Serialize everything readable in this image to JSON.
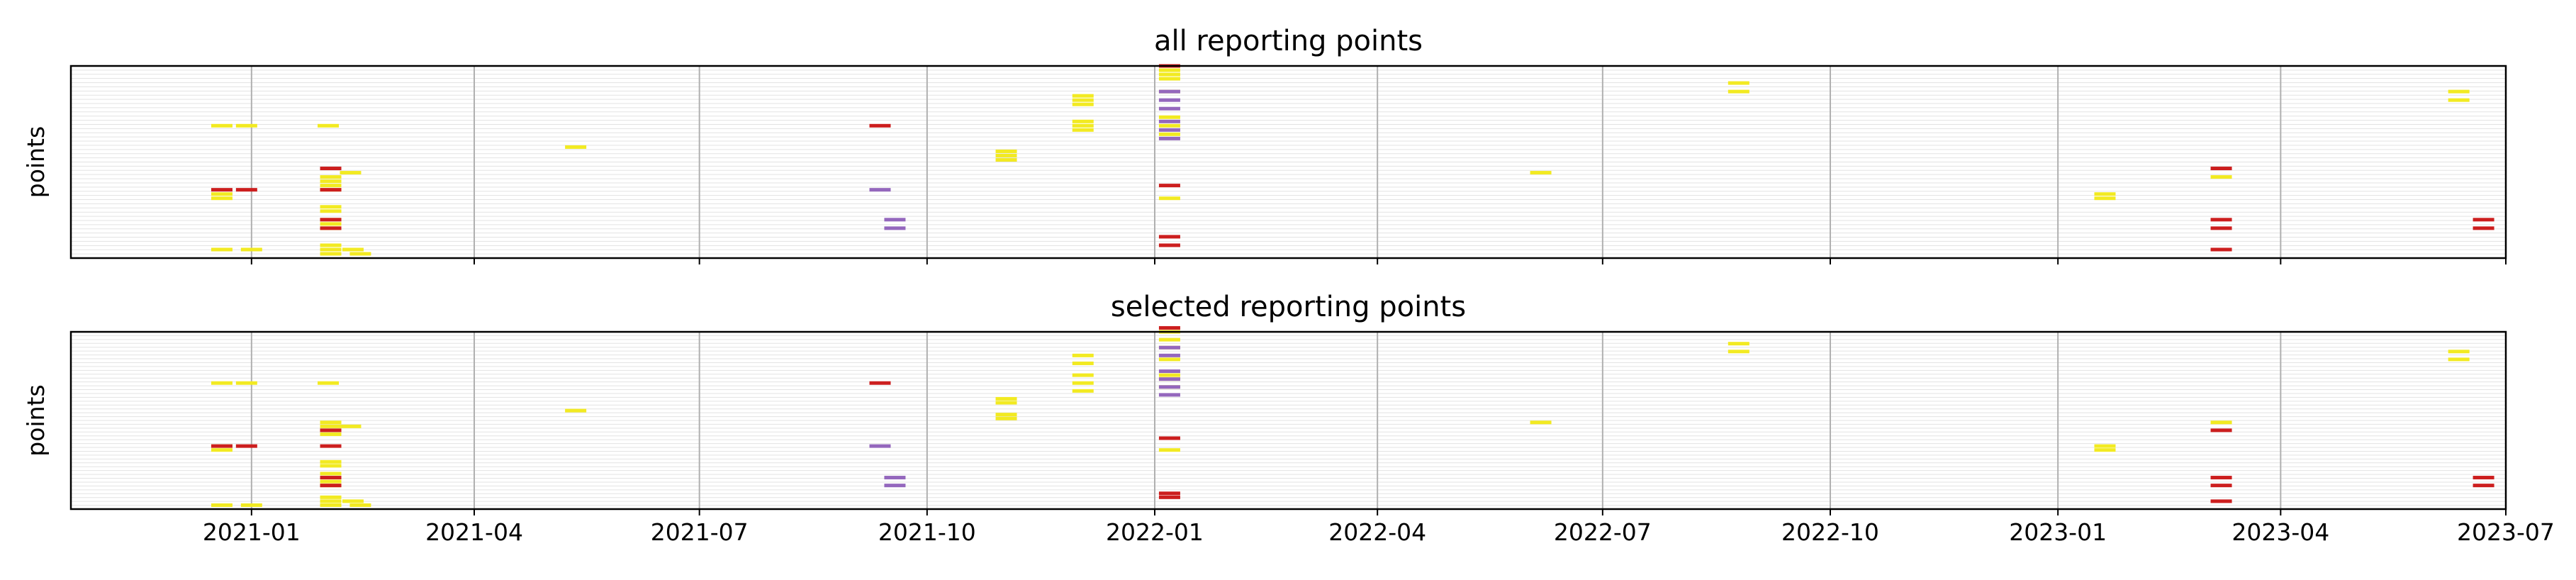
{
  "colors": {
    "background": "#ffffff",
    "frame": "#000000",
    "vgrid": "#b0b0b0",
    "hgrid": "#e3e3e3",
    "yellow": "#f2ea22",
    "red": "#cc1e1e",
    "purple": "#9467bd"
  },
  "chart_data": [
    {
      "type": "scatter",
      "title": "all reporting points",
      "xlabel": "",
      "ylabel": "points",
      "xlim": [
        "2020-10-20",
        "2023-07-01"
      ],
      "ylim": [
        0,
        45
      ],
      "grid": true,
      "legend": "none",
      "show_xtick_labels": false,
      "xticks": [
        "2021-01",
        "2021-04",
        "2021-07",
        "2021-10",
        "2022-01",
        "2022-04",
        "2022-07",
        "2022-10",
        "2023-01",
        "2023-04",
        "2023-07"
      ],
      "series": [
        {
          "color": "yellow",
          "points": [
            [
              "2020-12-20",
              31
            ],
            [
              "2020-12-30",
              31
            ],
            [
              "2021-02-01",
              31
            ],
            [
              "2020-12-20",
              15
            ],
            [
              "2020-12-20",
              14
            ],
            [
              "2021-02-02",
              19
            ],
            [
              "2021-02-02",
              18
            ],
            [
              "2021-02-02",
              17
            ],
            [
              "2021-02-02",
              16
            ],
            [
              "2021-02-02",
              12
            ],
            [
              "2021-02-02",
              11
            ],
            [
              "2021-02-02",
              9
            ],
            [
              "2021-02-02",
              8
            ],
            [
              "2021-02-02",
              7
            ],
            [
              "2021-02-02",
              3
            ],
            [
              "2021-02-02",
              2
            ],
            [
              "2021-02-02",
              1
            ],
            [
              "2021-02-10",
              20
            ],
            [
              "2021-02-11",
              2
            ],
            [
              "2021-02-14",
              1
            ],
            [
              "2020-12-20",
              2
            ],
            [
              "2021-01-01",
              2
            ],
            [
              "2021-05-12",
              26
            ],
            [
              "2021-11-02",
              25
            ],
            [
              "2021-11-02",
              24
            ],
            [
              "2021-11-02",
              23
            ],
            [
              "2021-12-03",
              38
            ],
            [
              "2021-12-03",
              37
            ],
            [
              "2021-12-03",
              36
            ],
            [
              "2021-12-03",
              32
            ],
            [
              "2021-12-03",
              31
            ],
            [
              "2021-12-03",
              30
            ],
            [
              "2022-01-07",
              44
            ],
            [
              "2022-01-07",
              43
            ],
            [
              "2022-01-07",
              42
            ],
            [
              "2022-01-07",
              39
            ],
            [
              "2022-01-07",
              33
            ],
            [
              "2022-01-07",
              31
            ],
            [
              "2022-01-07",
              29
            ],
            [
              "2022-01-07",
              14
            ],
            [
              "2022-06-06",
              20
            ],
            [
              "2022-08-25",
              41
            ],
            [
              "2022-08-25",
              39
            ],
            [
              "2023-01-20",
              15
            ],
            [
              "2023-01-20",
              14
            ],
            [
              "2023-03-08",
              19
            ],
            [
              "2023-06-12",
              39
            ],
            [
              "2023-06-12",
              37
            ]
          ]
        },
        {
          "color": "red",
          "points": [
            [
              "2022-01-07",
              45
            ],
            [
              "2020-12-20",
              16
            ],
            [
              "2020-12-30",
              16
            ],
            [
              "2021-02-02",
              21
            ],
            [
              "2021-02-02",
              16
            ],
            [
              "2021-02-02",
              9
            ],
            [
              "2021-02-02",
              7
            ],
            [
              "2021-09-12",
              31
            ],
            [
              "2022-01-07",
              17
            ],
            [
              "2022-01-07",
              5
            ],
            [
              "2022-01-07",
              3
            ],
            [
              "2023-03-08",
              21
            ],
            [
              "2023-03-08",
              9
            ],
            [
              "2023-03-08",
              7
            ],
            [
              "2023-03-08",
              2
            ],
            [
              "2023-06-22",
              9
            ],
            [
              "2023-06-22",
              7
            ]
          ]
        },
        {
          "color": "purple",
          "points": [
            [
              "2022-01-07",
              39
            ],
            [
              "2022-01-07",
              37
            ],
            [
              "2022-01-07",
              35
            ],
            [
              "2022-01-07",
              32
            ],
            [
              "2022-01-07",
              30
            ],
            [
              "2022-01-07",
              28
            ],
            [
              "2021-09-12",
              16
            ],
            [
              "2021-09-18",
              9
            ],
            [
              "2021-09-18",
              7
            ]
          ]
        }
      ]
    },
    {
      "type": "scatter",
      "title": "selected reporting points",
      "xlabel": "",
      "ylabel": "points",
      "xlim": [
        "2020-10-20",
        "2023-07-01"
      ],
      "ylim": [
        0,
        45
      ],
      "grid": true,
      "legend": "none",
      "show_xtick_labels": true,
      "xticks": [
        "2021-01",
        "2021-04",
        "2021-07",
        "2021-10",
        "2022-01",
        "2022-04",
        "2022-07",
        "2022-10",
        "2023-01",
        "2023-04",
        "2023-07"
      ],
      "series": [
        {
          "color": "yellow",
          "points": [
            [
              "2020-12-20",
              32
            ],
            [
              "2020-12-30",
              32
            ],
            [
              "2021-02-01",
              32
            ],
            [
              "2020-12-20",
              16
            ],
            [
              "2020-12-20",
              15
            ],
            [
              "2021-02-02",
              22
            ],
            [
              "2021-02-02",
              21
            ],
            [
              "2021-02-02",
              20
            ],
            [
              "2021-02-02",
              19
            ],
            [
              "2021-02-02",
              12
            ],
            [
              "2021-02-02",
              11
            ],
            [
              "2021-02-02",
              9
            ],
            [
              "2021-02-02",
              7
            ],
            [
              "2021-02-02",
              6
            ],
            [
              "2021-02-02",
              3
            ],
            [
              "2021-02-02",
              2
            ],
            [
              "2021-02-02",
              1
            ],
            [
              "2021-02-10",
              21
            ],
            [
              "2021-02-11",
              2
            ],
            [
              "2021-02-14",
              1
            ],
            [
              "2020-12-20",
              1
            ],
            [
              "2021-01-01",
              1
            ],
            [
              "2021-05-12",
              25
            ],
            [
              "2021-11-02",
              28
            ],
            [
              "2021-11-02",
              27
            ],
            [
              "2021-11-02",
              24
            ],
            [
              "2021-11-02",
              23
            ],
            [
              "2021-12-03",
              39
            ],
            [
              "2021-12-03",
              37
            ],
            [
              "2021-12-03",
              34
            ],
            [
              "2021-12-03",
              32
            ],
            [
              "2021-12-03",
              30
            ],
            [
              "2022-01-07",
              45
            ],
            [
              "2022-01-07",
              43
            ],
            [
              "2022-01-07",
              41
            ],
            [
              "2022-01-07",
              38
            ],
            [
              "2022-01-07",
              34
            ],
            [
              "2022-01-07",
              33
            ],
            [
              "2022-01-07",
              31
            ],
            [
              "2022-01-07",
              15
            ],
            [
              "2022-06-06",
              22
            ],
            [
              "2022-08-25",
              42
            ],
            [
              "2022-08-25",
              40
            ],
            [
              "2023-01-20",
              16
            ],
            [
              "2023-01-20",
              15
            ],
            [
              "2023-03-08",
              22
            ],
            [
              "2023-06-12",
              40
            ],
            [
              "2023-06-12",
              38
            ]
          ]
        },
        {
          "color": "red",
          "points": [
            [
              "2022-01-07",
              46
            ],
            [
              "2020-12-20",
              16
            ],
            [
              "2020-12-30",
              16
            ],
            [
              "2021-02-02",
              20
            ],
            [
              "2021-02-02",
              16
            ],
            [
              "2021-02-02",
              8
            ],
            [
              "2021-02-02",
              6
            ],
            [
              "2021-09-12",
              32
            ],
            [
              "2022-01-07",
              18
            ],
            [
              "2022-01-07",
              4
            ],
            [
              "2022-01-07",
              3
            ],
            [
              "2023-03-08",
              20
            ],
            [
              "2023-03-08",
              8
            ],
            [
              "2023-03-08",
              6
            ],
            [
              "2023-03-08",
              2
            ],
            [
              "2023-06-22",
              8
            ],
            [
              "2023-06-22",
              6
            ]
          ]
        },
        {
          "color": "purple",
          "points": [
            [
              "2022-01-07",
              41
            ],
            [
              "2022-01-07",
              39
            ],
            [
              "2022-01-07",
              35
            ],
            [
              "2022-01-07",
              33
            ],
            [
              "2022-01-07",
              31
            ],
            [
              "2022-01-07",
              29
            ],
            [
              "2021-09-12",
              16
            ],
            [
              "2021-09-18",
              8
            ],
            [
              "2021-09-18",
              6
            ]
          ]
        }
      ]
    }
  ]
}
